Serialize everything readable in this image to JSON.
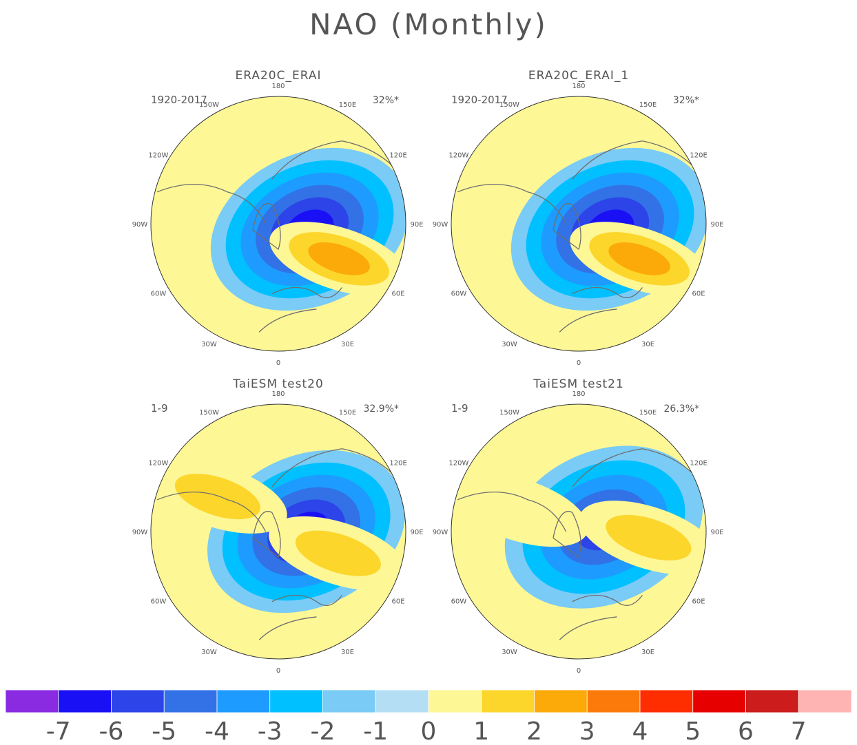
{
  "title": "NAO (Monthly)",
  "panels": [
    {
      "title": "ERA20C_ERAI",
      "period": "1920-2017",
      "variance": "32%*",
      "highs": [
        {
          "pole_angle_deg": 120,
          "dist_frac": 0.55,
          "level": 3
        }
      ],
      "lows": [
        {
          "pole_angle_deg": 100,
          "dist_frac": 0.25,
          "level": -6
        }
      ]
    },
    {
      "title": "ERA20C_ERAI_1",
      "period": "1920-2017",
      "variance": "32%*",
      "highs": [
        {
          "pole_angle_deg": 120,
          "dist_frac": 0.55,
          "level": 3
        }
      ],
      "lows": [
        {
          "pole_angle_deg": 100,
          "dist_frac": 0.25,
          "level": -6
        }
      ]
    },
    {
      "title": "TaiESM test20",
      "period": "1-9",
      "variance": "32.9%*",
      "highs": [
        {
          "pole_angle_deg": 110,
          "dist_frac": 0.5,
          "level": 2
        },
        {
          "pole_angle_deg": -60,
          "dist_frac": 0.55,
          "level": 2
        }
      ],
      "lows": [
        {
          "pole_angle_deg": 90,
          "dist_frac": 0.22,
          "level": -6
        }
      ]
    },
    {
      "title": "TaiESM test21",
      "period": "1-9",
      "variance": "26.3%*",
      "highs": [
        {
          "pole_angle_deg": 95,
          "dist_frac": 0.55,
          "level": 2
        },
        {
          "pole_angle_deg": -70,
          "dist_frac": 0.5,
          "level": 1
        }
      ],
      "lows": [
        {
          "pole_angle_deg": 80,
          "dist_frac": 0.2,
          "level": -5
        }
      ]
    }
  ],
  "longitude_labels": [
    "180",
    "150E",
    "120E",
    "90E",
    "60E",
    "30E",
    "0",
    "30W",
    "60W",
    "90W",
    "120W",
    "150W"
  ],
  "colorbar": {
    "labels": [
      "-7",
      "-6",
      "-5",
      "-4",
      "-3",
      "-2",
      "-1",
      "0",
      "1",
      "2",
      "3",
      "4",
      "5",
      "6",
      "7"
    ],
    "colors": [
      "#8a2be2",
      "#1a10f5",
      "#2c44e8",
      "#3272e6",
      "#1e9bff",
      "#00c0ff",
      "#7acbf5",
      "#b4def4",
      "#fdf796",
      "#fdd62c",
      "#fcaa0a",
      "#fc7a0a",
      "#ff2e00",
      "#e60000",
      "#cc1c1c",
      "#ffb4b4"
    ]
  },
  "colors": {
    "background": "#fdf796",
    "coast": "#6e6e6e",
    "text": "#555555"
  }
}
